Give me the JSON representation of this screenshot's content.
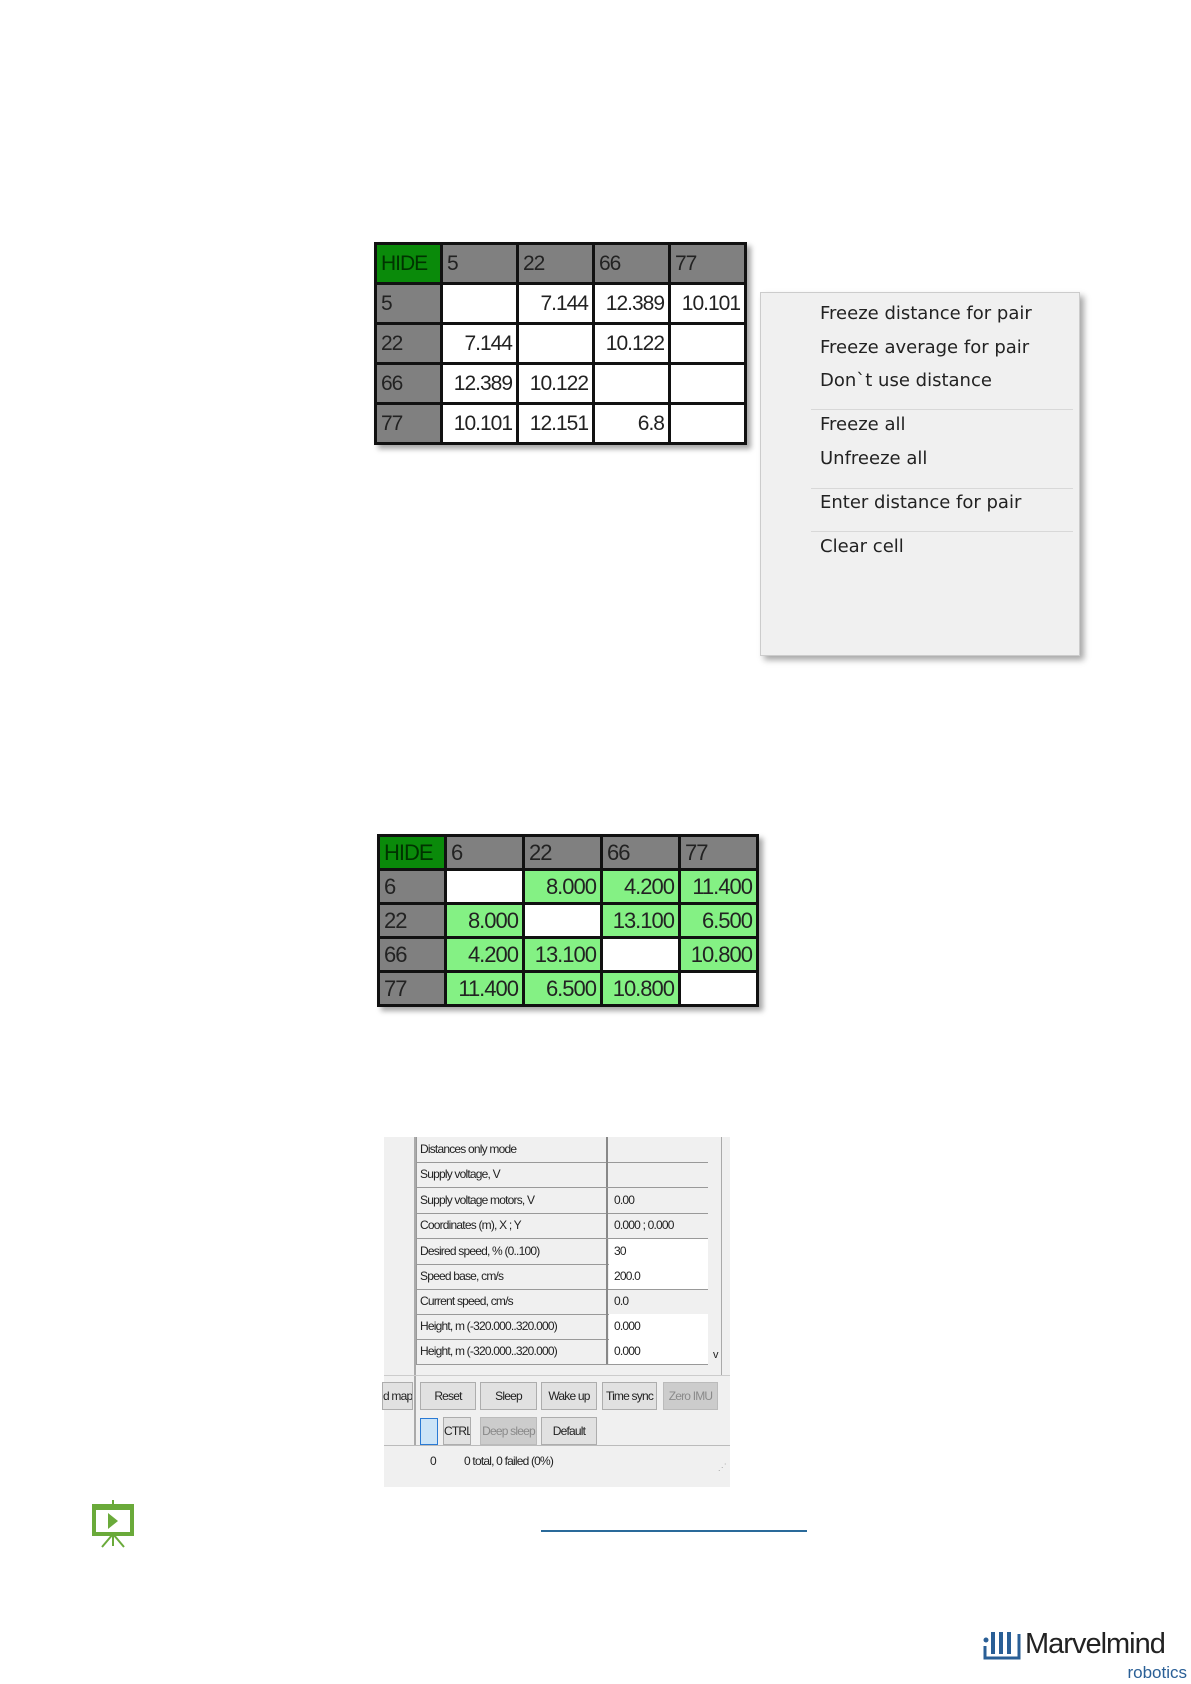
{
  "table1": {
    "header": [
      "HIDE",
      "5",
      "22",
      "66",
      "77"
    ],
    "rows": [
      [
        "5",
        "",
        "7.144",
        "12.389",
        "10.101"
      ],
      [
        "22",
        "7.144",
        "",
        "10.122",
        ""
      ],
      [
        "66",
        "12.389",
        "10.122",
        "",
        ""
      ],
      [
        "77",
        "10.101",
        "12.151",
        "6.8",
        ""
      ]
    ]
  },
  "context_menu": {
    "items": [
      "Freeze distance for pair",
      "Freeze average for pair",
      "Don`t use distance",
      "Freeze all",
      "Unfreeze all",
      "Enter distance for pair",
      "Clear cell"
    ]
  },
  "table2": {
    "header": [
      "HIDE",
      "6",
      "22",
      "66",
      "77"
    ],
    "rows": [
      [
        "6",
        "",
        "8.000",
        "4.200",
        "11.400"
      ],
      [
        "22",
        "8.000",
        "",
        "13.100",
        "6.500"
      ],
      [
        "66",
        "4.200",
        "13.100",
        "",
        "10.800"
      ],
      [
        "77",
        "11.400",
        "6.500",
        "10.800",
        ""
      ]
    ]
  },
  "panel": {
    "rows": [
      {
        "label": "Distances only mode",
        "value": ""
      },
      {
        "label": "Supply voltage, V",
        "value": ""
      },
      {
        "label": "Supply voltage motors, V",
        "value": "0.00"
      },
      {
        "label": "Coordinates (m), X ; Y",
        "value": "0.000 ; 0.000"
      },
      {
        "label": "Desired speed, % (0..100)",
        "value": "30"
      },
      {
        "label": "Speed base, cm/s",
        "value": "200.0"
      },
      {
        "label": "Current speed, cm/s",
        "value": "0.0"
      },
      {
        "label": "Height, m (-320.000..320.000)",
        "value": "0.000"
      },
      {
        "label": "Height, m (-320.000..320.000)",
        "value": "0.000"
      }
    ],
    "scroll_arrow": "v",
    "buttons": {
      "map": "d map",
      "reset": "Reset",
      "sleep": "Sleep",
      "wake_up": "Wake up",
      "time_sync": "Time sync",
      "zero_imu": "Zero IMU",
      "ctrl": "CTRL",
      "deep_sleep": "Deep sleep",
      "default": "Default"
    },
    "status": {
      "count": "0",
      "summary": "0 total, 0 failed (0%)"
    }
  },
  "logo": {
    "name": "Marvelmind",
    "sub": "robotics"
  },
  "colors": {
    "hide_green": "#0a8a0a",
    "header_gray": "#808080",
    "frozen_green": "#84f184",
    "icon_green": "#6aaa3a",
    "link_blue": "#2a6a9a",
    "logo_blue": "#2a5f96"
  }
}
